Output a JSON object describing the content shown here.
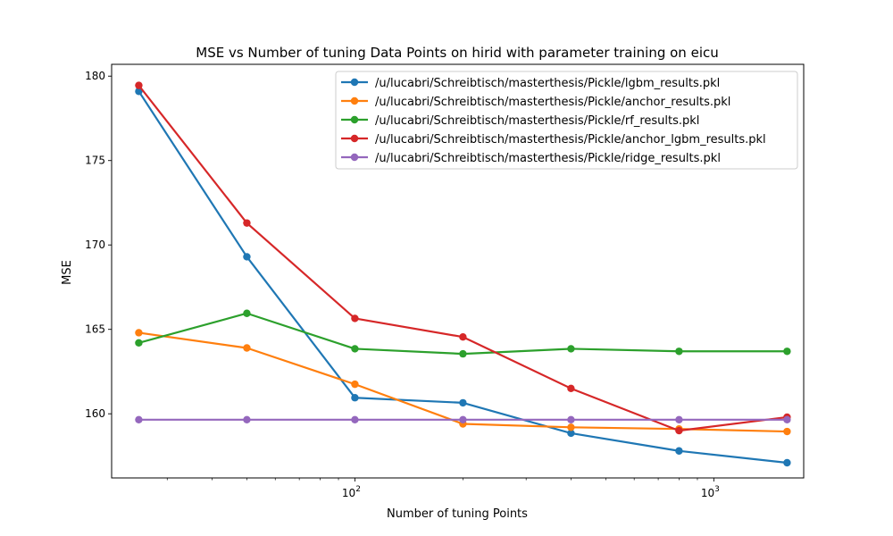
{
  "chart_data": {
    "type": "line",
    "title": "MSE vs Number of tuning Data Points on hirid with parameter training on eicu",
    "xlabel": "Number of tuning Points",
    "ylabel": "MSE",
    "xscale": "log",
    "xlim": [
      21,
      1780
    ],
    "ylim": [
      156.2,
      180.7
    ],
    "x": [
      25,
      50,
      100,
      200,
      400,
      800,
      1600
    ],
    "x_ticks": [
      {
        "value": 100,
        "base": "10",
        "exp": "2"
      },
      {
        "value": 1000,
        "base": "10",
        "exp": "3"
      }
    ],
    "y_ticks": [
      "160",
      "165",
      "170",
      "175",
      "180"
    ],
    "grid": false,
    "legend_position": "top-right",
    "series": [
      {
        "name": "/u/lucabri/Schreibtisch/masterthesis/Pickle/lgbm_results.pkl",
        "color": "#1f77b4",
        "values": [
          179.1,
          169.3,
          160.95,
          160.65,
          158.85,
          157.8,
          157.1
        ]
      },
      {
        "name": "/u/lucabri/Schreibtisch/masterthesis/Pickle/anchor_results.pkl",
        "color": "#ff7f0e",
        "values": [
          164.8,
          163.9,
          161.75,
          159.4,
          159.2,
          159.1,
          158.95
        ]
      },
      {
        "name": "/u/lucabri/Schreibtisch/masterthesis/Pickle/rf_results.pkl",
        "color": "#2ca02c",
        "values": [
          164.2,
          165.95,
          163.85,
          163.55,
          163.85,
          163.7,
          163.7
        ]
      },
      {
        "name": "/u/lucabri/Schreibtisch/masterthesis/Pickle/anchor_lgbm_results.pkl",
        "color": "#d62728",
        "values": [
          179.45,
          171.3,
          165.65,
          164.55,
          161.5,
          159.0,
          159.8
        ]
      },
      {
        "name": "/u/lucabri/Schreibtisch/masterthesis/Pickle/ridge_results.pkl",
        "color": "#9467bd",
        "values": [
          159.65,
          159.65,
          159.65,
          159.65,
          159.65,
          159.65,
          159.65
        ]
      }
    ]
  }
}
